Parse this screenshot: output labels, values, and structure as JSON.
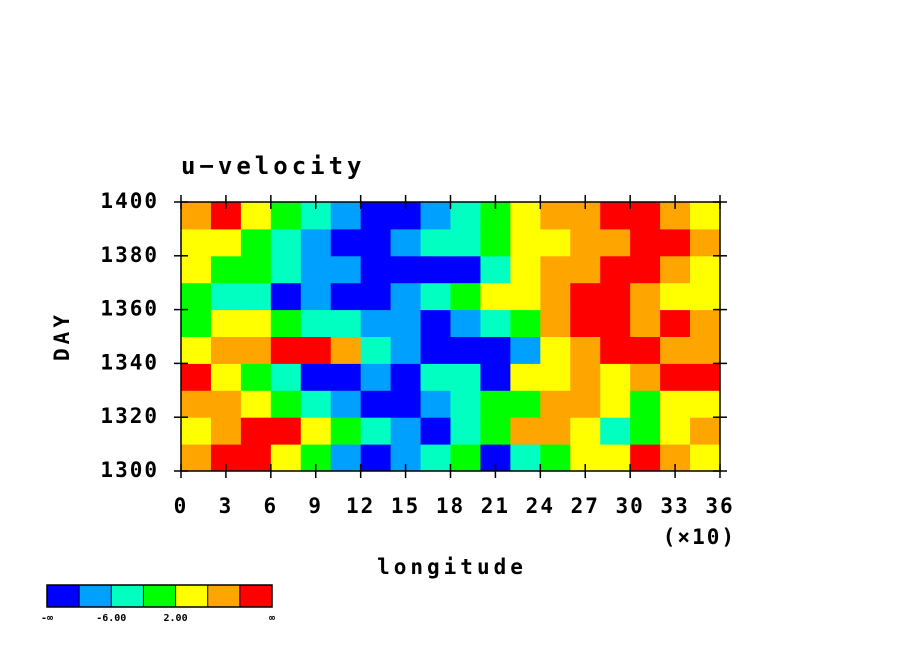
{
  "chart_data": {
    "type": "filled_contour",
    "title": "u−velocity",
    "x_label": "longitude",
    "x_multiplier": "(×10)",
    "y_label": "DAY",
    "xlim": [
      0,
      36
    ],
    "xticks": [
      0,
      3,
      6,
      9,
      12,
      15,
      18,
      21,
      24,
      27,
      30,
      33,
      36
    ],
    "ylim": [
      1300,
      1400
    ],
    "yticks": [
      1300,
      1320,
      1340,
      1360,
      1380,
      1400
    ],
    "x_edges": [
      0,
      2,
      4,
      6,
      8,
      10,
      12,
      14,
      16,
      18,
      20,
      22,
      24,
      26,
      28,
      30,
      32,
      34,
      36
    ],
    "y_edges": [
      1300,
      1310,
      1320,
      1330,
      1340,
      1350,
      1360,
      1370,
      1380,
      1390,
      1400
    ],
    "z": [
      [
        8,
        12,
        12,
        4,
        0,
        -8,
        -12,
        -8,
        -4,
        0,
        -12,
        -4,
        0,
        4,
        4,
        12,
        8,
        4
      ],
      [
        4,
        8,
        12,
        12,
        4,
        0,
        -4,
        -8,
        -12,
        -4,
        0,
        8,
        8,
        4,
        -4,
        0,
        4,
        8
      ],
      [
        8,
        8,
        4,
        0,
        -4,
        -8,
        -12,
        -12,
        -8,
        -4,
        0,
        0,
        8,
        8,
        4,
        0,
        4,
        4
      ],
      [
        12,
        4,
        0,
        -4,
        -12,
        -12,
        -8,
        -12,
        -4,
        -4,
        -12,
        4,
        4,
        8,
        4,
        8,
        12,
        12
      ],
      [
        4,
        8,
        8,
        12,
        12,
        8,
        -4,
        -8,
        -12,
        -12,
        -12,
        -8,
        4,
        8,
        12,
        12,
        8,
        8
      ],
      [
        0,
        4,
        4,
        0,
        -4,
        -4,
        -8,
        -8,
        -12,
        -8,
        -4,
        0,
        8,
        12,
        12,
        8,
        12,
        8
      ],
      [
        0,
        -4,
        -4,
        -12,
        -8,
        -12,
        -12,
        -8,
        -4,
        0,
        4,
        4,
        8,
        12,
        12,
        8,
        4,
        4
      ],
      [
        4,
        0,
        0,
        -4,
        -8,
        -8,
        -12,
        -12,
        -12,
        -12,
        -4,
        4,
        8,
        8,
        12,
        12,
        8,
        4
      ],
      [
        4,
        4,
        0,
        -4,
        -8,
        -12,
        -12,
        -8,
        -4,
        -4,
        0,
        4,
        4,
        8,
        8,
        12,
        12,
        8
      ],
      [
        8,
        12,
        4,
        0,
        -4,
        -8,
        -12,
        -12,
        -8,
        -4,
        0,
        4,
        8,
        8,
        12,
        12,
        8,
        4
      ]
    ],
    "levels": [
      -10,
      -6,
      -2,
      2,
      6,
      10
    ],
    "colors": [
      "#0000ff",
      "#00a0ff",
      "#00ffc0",
      "#00ff00",
      "#ffff00",
      "#ffa500",
      "#ff0000"
    ],
    "colorbar_labels": [
      {
        "value": -6,
        "label": "-6.00"
      },
      {
        "value": 2,
        "label": "2.00"
      }
    ],
    "colorbar_low": "-∞",
    "colorbar_high": "∞"
  }
}
